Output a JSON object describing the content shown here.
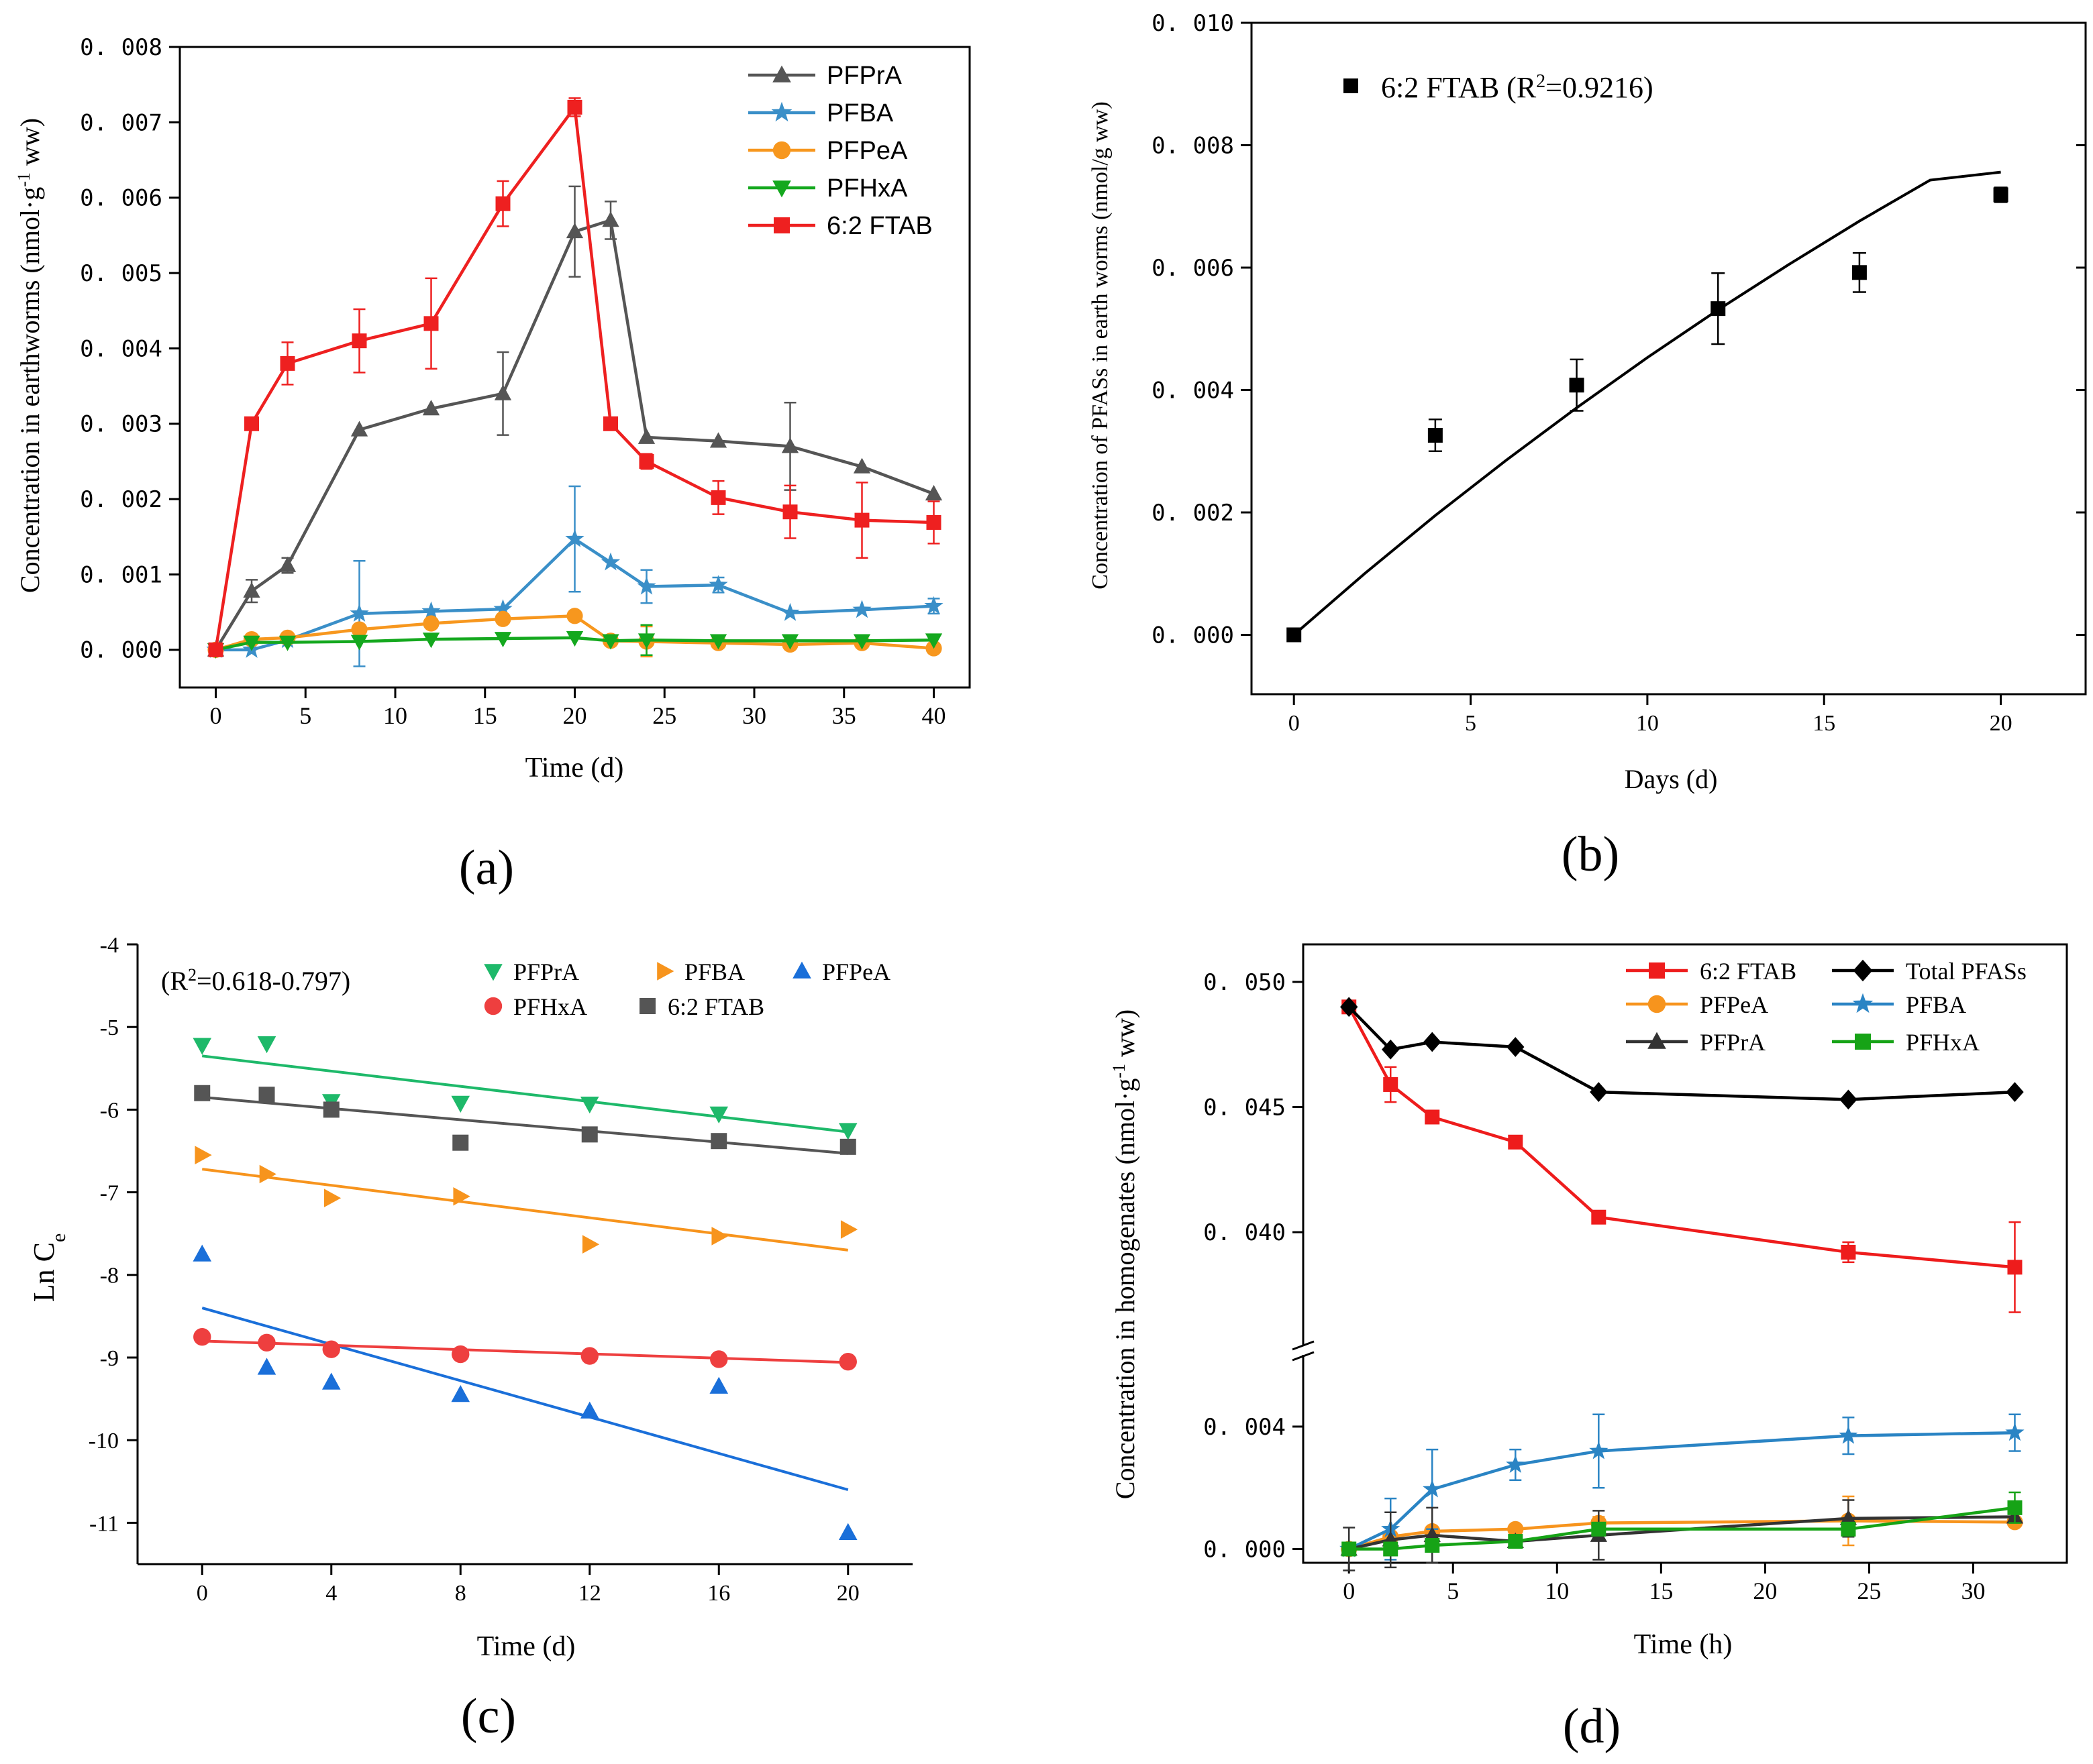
{
  "colors": {
    "PFPrA_a": "#555555",
    "PFBA_a": "#3a8fc8",
    "PFPeA_a": "#f7971e",
    "PFHxA_a": "#14a81e",
    "FTAB_a": "#ee2020",
    "PFPrA_c": "#1eb96a",
    "PFBA_c": "#f7941d",
    "PFPeA_c": "#1a6fd9",
    "PFHxA_c": "#ee3f3f",
    "FTAB_c": "#555555",
    "FTAB_d": "#ee1c1c",
    "Total_d": "#000000",
    "PFPeA_d": "#f7941d",
    "PFBA_d": "#2a84c4",
    "PFPrA_d": "#333333",
    "PFHxA_d": "#16a316"
  },
  "panel_labels": {
    "a": "(a)",
    "b": "(b)",
    "c": "(c)",
    "d": "(d)"
  },
  "chart_data": [
    {
      "id": "a",
      "type": "line",
      "title": "",
      "xlabel": "Time (d)",
      "ylabel": "Concentration in earthworms (nmol·g⁻¹ ww)",
      "xlim": [
        -2,
        42
      ],
      "ylim": [
        -0.0005,
        0.008
      ],
      "xticks": [
        0,
        5,
        10,
        15,
        20,
        25,
        30,
        35,
        40
      ],
      "xtick_labels": [
        "0",
        "5",
        "10",
        "15",
        "20",
        "25",
        "30",
        "35",
        "40"
      ],
      "yticks": [
        0,
        0.001,
        0.002,
        0.003,
        0.004,
        0.005,
        0.006,
        0.007,
        0.008
      ],
      "ytick_labels": [
        "0. 000",
        "0. 001",
        "0. 002",
        "0. 003",
        "0. 004",
        "0. 005",
        "0. 006",
        "0. 007",
        "0. 008"
      ],
      "legend_position": "top-right",
      "series": [
        {
          "name": "PFPrA",
          "color_key": "PFPrA_a",
          "marker": "triangle-up",
          "x": [
            0,
            2,
            4,
            8,
            12,
            16,
            20,
            22,
            24,
            28,
            32,
            36,
            40
          ],
          "y": [
            0,
            0.00078,
            0.00112,
            0.00292,
            0.0032,
            0.0034,
            0.00555,
            0.0057,
            0.00282,
            0.00277,
            0.0027,
            0.00243,
            0.00207
          ],
          "err": [
            0,
            0.00015,
            0.0001,
            0,
            0,
            0.00055,
            0.0006,
            0.00025,
            0,
            0,
            0.00058,
            0,
            0
          ]
        },
        {
          "name": "PFBA",
          "color_key": "PFBA_a",
          "marker": "star",
          "x": [
            0,
            2,
            4,
            8,
            12,
            16,
            20,
            22,
            24,
            28,
            32,
            36,
            40
          ],
          "y": [
            0,
            0,
            0.00013,
            0.00048,
            0.00051,
            0.00054,
            0.00147,
            0.00116,
            0.00084,
            0.00086,
            0.00049,
            0.00053,
            0.00058
          ],
          "err": [
            0,
            0,
            0,
            0.0007,
            0,
            0,
            0.0007,
            0,
            0.00022,
            0.0001,
            0,
            0,
            0.0001
          ]
        },
        {
          "name": "PFPeA",
          "color_key": "PFPeA_a",
          "marker": "circle",
          "x": [
            0,
            2,
            4,
            8,
            12,
            16,
            20,
            22,
            24,
            28,
            32,
            36,
            40
          ],
          "y": [
            0,
            0.00014,
            0.00016,
            0.00027,
            0.00035,
            0.00041,
            0.00045,
            0.00012,
            0.00011,
            9e-05,
            7e-05,
            9e-05,
            2e-05
          ],
          "err": [
            0,
            0,
            0,
            0,
            0,
            0,
            0,
            0,
            0.0002,
            0,
            0,
            0,
            0
          ]
        },
        {
          "name": "PFHxA",
          "color_key": "PFHxA_a",
          "marker": "triangle-down",
          "x": [
            0,
            2,
            4,
            8,
            12,
            16,
            20,
            22,
            24,
            28,
            32,
            36,
            40
          ],
          "y": [
            0,
            0.0001,
            0.0001,
            0.00011,
            0.00014,
            0.00015,
            0.00016,
            0.00012,
            0.00013,
            0.00012,
            0.00012,
            0.00012,
            0.00013
          ],
          "err": [
            0,
            0,
            0,
            0,
            0,
            0,
            0,
            0,
            0.0002,
            0,
            0,
            0,
            0
          ]
        },
        {
          "name": "6:2 FTAB",
          "color_key": "FTAB_a",
          "marker": "square",
          "x": [
            0,
            2,
            4,
            8,
            12,
            16,
            20,
            22,
            24,
            28,
            32,
            36,
            40
          ],
          "y": [
            0,
            0.003,
            0.0038,
            0.0041,
            0.00433,
            0.00592,
            0.0072,
            0.003,
            0.0025,
            0.00202,
            0.00183,
            0.00172,
            0.00169
          ],
          "err": [
            0,
            0,
            0.00028,
            0.00042,
            0.0006,
            0.0003,
            0.00012,
            0,
            0.0001,
            0.00022,
            0.00035,
            0.0005,
            0.00028
          ]
        }
      ]
    },
    {
      "id": "b",
      "type": "scatter",
      "title": "",
      "xlabel": "Days (d)",
      "ylabel": "Concentration of PFASs in earth worms (nmol/g ww)",
      "xlim": [
        -1.2,
        22.4
      ],
      "ylim": [
        -0.00097,
        0.01
      ],
      "xticks": [
        0,
        5,
        10,
        15,
        20
      ],
      "xtick_labels": [
        "0",
        "5",
        "10",
        "15",
        "20"
      ],
      "yticks": [
        0,
        0.002,
        0.004,
        0.006,
        0.008,
        0.01
      ],
      "ytick_labels": [
        "0. 000",
        "0. 002",
        "0. 004",
        "0. 006",
        "0. 008",
        "0. 010"
      ],
      "legend_position": "top-left",
      "points": {
        "name": "6:2 FTAB",
        "r2_label": "6:2 FTAB (R",
        "r2_sup": "2",
        "r2_value": "=0.9216)",
        "x": [
          0,
          4,
          8,
          12,
          16,
          20
        ],
        "y": [
          0,
          0.00326,
          0.00408,
          0.00533,
          0.00592,
          0.00719
        ],
        "err": [
          0,
          0.00026,
          0.00042,
          0.00058,
          0.00032,
          0.00012
        ]
      },
      "fit": {
        "x": [
          0,
          2,
          4,
          6,
          8,
          10,
          12,
          14,
          16,
          18,
          20
        ],
        "y": [
          0,
          0.001,
          0.00195,
          0.00285,
          0.00371,
          0.00453,
          0.00531,
          0.00605,
          0.00676,
          0.00743,
          0.00756
        ]
      }
    },
    {
      "id": "c",
      "type": "scatter",
      "title": "",
      "xlabel": "Time (d)",
      "ylabel": "Ln C",
      "ylabel_sub": "e",
      "xlim": [
        -2,
        22
      ],
      "ylim": [
        -11.5,
        -4
      ],
      "xticks": [
        0,
        4,
        8,
        12,
        16,
        20
      ],
      "xtick_labels": [
        "0",
        "4",
        "8",
        "12",
        "16",
        "20"
      ],
      "yticks": [
        -4,
        -5,
        -6,
        -7,
        -8,
        -9,
        -10,
        -11
      ],
      "ytick_labels": [
        "-4",
        "-5",
        "-6",
        "-7",
        "-8",
        "-9",
        "-10",
        "-11"
      ],
      "annotation": {
        "prefix": "(R",
        "sup": "2",
        "suffix": "=0.618-0.797)"
      },
      "legend_position": "top-right",
      "series": [
        {
          "name": "PFPrA",
          "color_key": "PFPrA_c",
          "marker": "triangle-down",
          "x": [
            0,
            2,
            4,
            8,
            12,
            16,
            20
          ],
          "y": [
            -5.22,
            -5.2,
            -5.9,
            -5.92,
            -5.93,
            -6.05,
            -6.25
          ],
          "fit": [
            -5.35,
            -6.27
          ]
        },
        {
          "name": "PFBA",
          "color_key": "PFBA_c",
          "marker": "triangle-right",
          "x": [
            0,
            2,
            4,
            8,
            12,
            16,
            20
          ],
          "y": [
            -6.55,
            -6.78,
            -7.07,
            -7.05,
            -7.63,
            -7.53,
            -7.45
          ],
          "fit": [
            -6.72,
            -7.7
          ]
        },
        {
          "name": "PFPeA",
          "color_key": "PFPeA_c",
          "marker": "triangle-up",
          "x": [
            0,
            2,
            4,
            8,
            12,
            16,
            20
          ],
          "y": [
            -7.75,
            -9.12,
            -9.3,
            -9.45,
            -9.65,
            -9.35,
            -11.12
          ],
          "fit": [
            -8.4,
            -10.6
          ]
        },
        {
          "name": "PFHxA",
          "color_key": "PFHxA_c",
          "marker": "circle",
          "x": [
            0,
            2,
            4,
            8,
            12,
            16,
            20
          ],
          "y": [
            -8.75,
            -8.82,
            -8.9,
            -8.96,
            -8.98,
            -9.02,
            -9.05
          ],
          "fit": [
            -8.8,
            -9.06
          ]
        },
        {
          "name": "6:2 FTAB",
          "color_key": "FTAB_c",
          "marker": "square",
          "x": [
            0,
            2,
            4,
            8,
            12,
            16,
            20
          ],
          "y": [
            -5.8,
            -5.82,
            -6.0,
            -6.4,
            -6.3,
            -6.38,
            -6.45
          ],
          "fit": [
            -5.85,
            -6.53
          ]
        }
      ]
    },
    {
      "id": "d",
      "type": "line",
      "title": "",
      "xlabel": "Time (h)",
      "ylabel": "Concentration in homogenates (nmol·g⁻¹ ww)",
      "xlim": [
        -2.2,
        34.5
      ],
      "broken_y_axis": true,
      "upper_ylim": [
        0.0355,
        0.0515
      ],
      "lower_ylim": [
        -0.00045,
        0.0063
      ],
      "xticks": [
        0,
        5,
        10,
        15,
        20,
        25,
        30
      ],
      "xtick_labels": [
        "0",
        "5",
        "10",
        "15",
        "20",
        "25",
        "30"
      ],
      "upper_yticks": [
        0.04,
        0.045,
        0.05
      ],
      "upper_ytick_labels": [
        "0. 040",
        "0. 045",
        "0. 050"
      ],
      "lower_yticks": [
        0,
        0.004
      ],
      "lower_ytick_labels": [
        "0. 000",
        "0. 004"
      ],
      "legend_position": "top-right",
      "series": [
        {
          "name": "6:2 FTAB",
          "color_key": "FTAB_d",
          "marker": "square",
          "panel": "upper",
          "x": [
            0,
            2,
            4,
            8,
            12,
            24,
            32
          ],
          "y": [
            0.049,
            0.0459,
            0.0446,
            0.0436,
            0.0406,
            0.0392,
            0.0386
          ],
          "err": [
            0,
            0.0007,
            0,
            0,
            0,
            0.0004,
            0.0018
          ]
        },
        {
          "name": "Total  PFASs",
          "color_key": "Total_d",
          "marker": "diamond",
          "panel": "upper",
          "x": [
            0,
            2,
            4,
            8,
            12,
            24,
            32
          ],
          "y": [
            0.049,
            0.0473,
            0.0476,
            0.0474,
            0.0456,
            0.0453,
            0.0456
          ],
          "err": [
            0,
            0,
            0,
            0,
            0,
            0,
            0
          ]
        },
        {
          "name": "PFPeA",
          "color_key": "PFPeA_d",
          "marker": "circle",
          "panel": "lower",
          "x": [
            0,
            2,
            4,
            8,
            12,
            24,
            32
          ],
          "y": [
            0,
            0.0004,
            0.00058,
            0.00065,
            0.00085,
            0.00092,
            0.00088
          ],
          "err": [
            0,
            0,
            0,
            0,
            0.0002,
            0.0008,
            0
          ]
        },
        {
          "name": "PFBA",
          "color_key": "PFBA_d",
          "marker": "star",
          "panel": "lower",
          "x": [
            0,
            2,
            4,
            8,
            12,
            24,
            32
          ],
          "y": [
            0,
            0.00065,
            0.00195,
            0.00275,
            0.0032,
            0.0037,
            0.0038
          ],
          "err": [
            0,
            0.001,
            0.0013,
            0.0005,
            0.0012,
            0.0006,
            0.0006
          ]
        },
        {
          "name": "PFPrA",
          "color_key": "PFPrA_d",
          "marker": "triangle-up",
          "panel": "lower",
          "x": [
            0,
            2,
            4,
            8,
            12,
            24,
            32
          ],
          "y": [
            0,
            0.0003,
            0.00045,
            0.00025,
            0.00045,
            0.001,
            0.00105
          ],
          "err": [
            0.0007,
            0.0009,
            0.0009,
            0,
            0.0008,
            0.0006,
            0
          ]
        },
        {
          "name": "PFHxA",
          "color_key": "PFHxA_d",
          "marker": "square",
          "panel": "lower",
          "x": [
            0,
            2,
            4,
            8,
            12,
            24,
            32
          ],
          "y": [
            0,
            0,
            0.00012,
            0.00025,
            0.00065,
            0.00065,
            0.00135
          ],
          "err": [
            0,
            0,
            0,
            0,
            0.0002,
            0.0002,
            0.0005
          ]
        }
      ]
    }
  ]
}
